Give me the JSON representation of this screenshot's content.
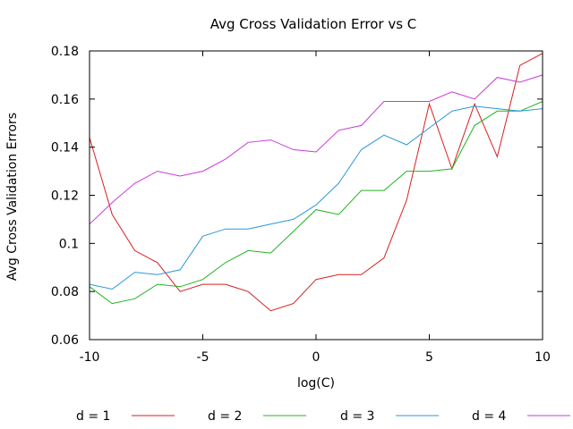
{
  "chart_data": {
    "type": "line",
    "title": "Avg Cross Validation Error vs C",
    "xlabel": "log(C)",
    "ylabel": "Avg Cross Validation Errors",
    "xlim": [
      -10,
      10
    ],
    "ylim": [
      0.06,
      0.18
    ],
    "xticks": [
      -10,
      -5,
      0,
      5,
      10
    ],
    "xtick_labels": [
      "-10",
      "-5",
      "0",
      "5",
      "10"
    ],
    "yticks": [
      0.06,
      0.08,
      0.1,
      0.12,
      0.14,
      0.16,
      0.18
    ],
    "ytick_labels": [
      "0.06",
      "0.08",
      "0.1",
      "0.12",
      "0.14",
      "0.16",
      "0.18"
    ],
    "grid": false,
    "legend_position": "bottom",
    "x": [
      -10,
      -9,
      -8,
      -7,
      -6,
      -5,
      -4,
      -3,
      -2,
      -1,
      0,
      1,
      2,
      3,
      4,
      5,
      6,
      7,
      8,
      9,
      10
    ],
    "series": [
      {
        "name": "d = 1",
        "color": "#d62020",
        "values": [
          0.144,
          0.112,
          0.097,
          0.092,
          0.08,
          0.083,
          0.083,
          0.08,
          0.072,
          0.075,
          0.085,
          0.087,
          0.087,
          0.094,
          0.118,
          0.158,
          0.131,
          0.158,
          0.136,
          0.174,
          0.179
        ]
      },
      {
        "name": "d = 2",
        "color": "#20b420",
        "values": [
          0.082,
          0.075,
          0.077,
          0.083,
          0.082,
          0.085,
          0.092,
          0.097,
          0.096,
          0.105,
          0.114,
          0.112,
          0.122,
          0.122,
          0.13,
          0.13,
          0.131,
          0.149,
          0.155,
          0.155,
          0.159
        ]
      },
      {
        "name": "d = 3",
        "color": "#2898d8",
        "values": [
          0.083,
          0.081,
          0.088,
          0.087,
          0.089,
          0.103,
          0.106,
          0.106,
          0.108,
          0.11,
          0.116,
          0.125,
          0.139,
          0.145,
          0.141,
          0.148,
          0.155,
          0.157,
          0.156,
          0.155,
          0.156
        ]
      },
      {
        "name": "d = 4",
        "color": "#c83ad8",
        "values": [
          0.108,
          0.117,
          0.125,
          0.13,
          0.128,
          0.13,
          0.135,
          0.142,
          0.143,
          0.139,
          0.138,
          0.147,
          0.149,
          0.159,
          0.159,
          0.159,
          0.163,
          0.16,
          0.169,
          0.167,
          0.17
        ]
      }
    ]
  }
}
